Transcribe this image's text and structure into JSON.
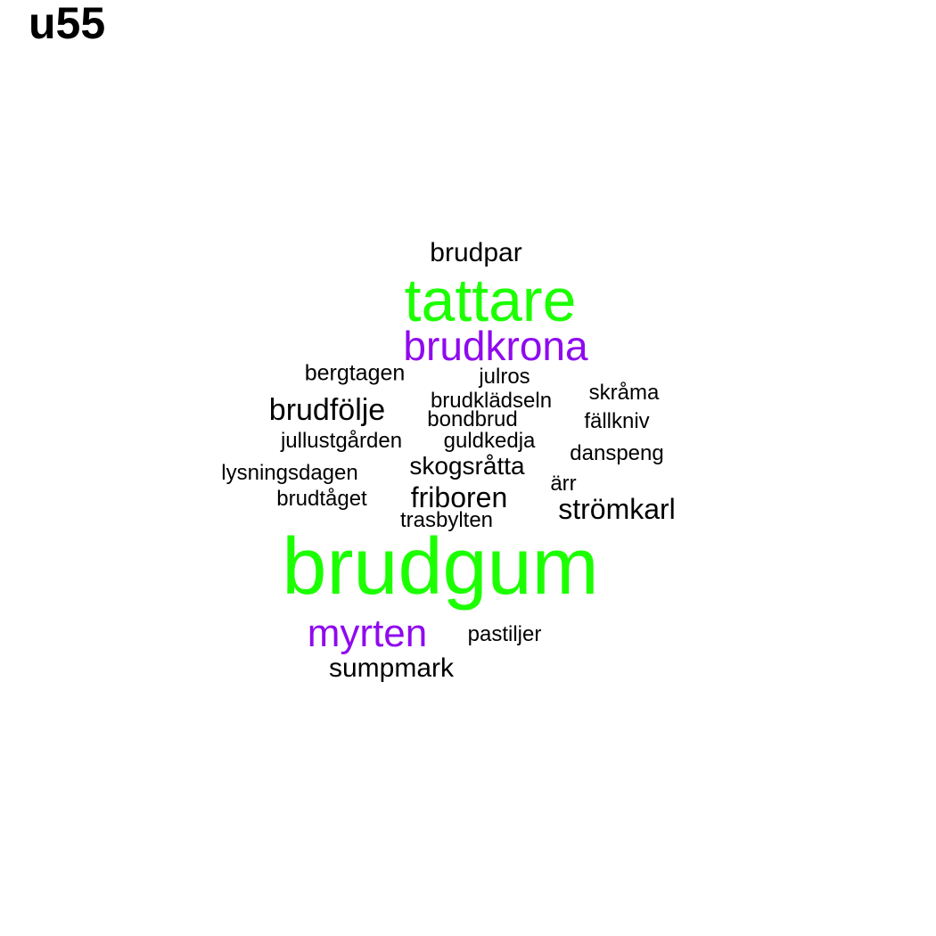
{
  "title": "u55",
  "colors": {
    "high": "#1cff00",
    "mid": "#8f0aee",
    "low": "#000000"
  },
  "chart_data": {
    "type": "wordcloud",
    "title": "u55",
    "words": [
      {
        "text": "brudgum",
        "weight": 10,
        "color": "high"
      },
      {
        "text": "tattare",
        "weight": 7.5,
        "color": "high"
      },
      {
        "text": "brudkrona",
        "weight": 5,
        "color": "mid"
      },
      {
        "text": "myrten",
        "weight": 4.8,
        "color": "mid"
      },
      {
        "text": "brudfölje",
        "weight": 3,
        "color": "low"
      },
      {
        "text": "strömkarl",
        "weight": 2.9,
        "color": "low"
      },
      {
        "text": "friboren",
        "weight": 2.9,
        "color": "low"
      },
      {
        "text": "brudpar",
        "weight": 2.8,
        "color": "low"
      },
      {
        "text": "sumpmark",
        "weight": 2.8,
        "color": "low"
      },
      {
        "text": "skogsråtta",
        "weight": 2.5,
        "color": "low"
      },
      {
        "text": "bergtagen",
        "weight": 2.2,
        "color": "low"
      },
      {
        "text": "julros",
        "weight": 2.1,
        "color": "low"
      },
      {
        "text": "brudklädseln",
        "weight": 2.1,
        "color": "low"
      },
      {
        "text": "bondbrud",
        "weight": 2.1,
        "color": "low"
      },
      {
        "text": "skråma",
        "weight": 2.1,
        "color": "low"
      },
      {
        "text": "fällkniv",
        "weight": 2.1,
        "color": "low"
      },
      {
        "text": "jullustgården",
        "weight": 2.1,
        "color": "low"
      },
      {
        "text": "guldkedja",
        "weight": 2.1,
        "color": "low"
      },
      {
        "text": "danspeng",
        "weight": 2.1,
        "color": "low"
      },
      {
        "text": "lysningsdagen",
        "weight": 2.1,
        "color": "low"
      },
      {
        "text": "ärr",
        "weight": 2.1,
        "color": "low"
      },
      {
        "text": "brudtåget",
        "weight": 2.1,
        "color": "low"
      },
      {
        "text": "trasbylten",
        "weight": 2.1,
        "color": "low"
      },
      {
        "text": "pastiljer",
        "weight": 2.1,
        "color": "low"
      }
    ]
  }
}
